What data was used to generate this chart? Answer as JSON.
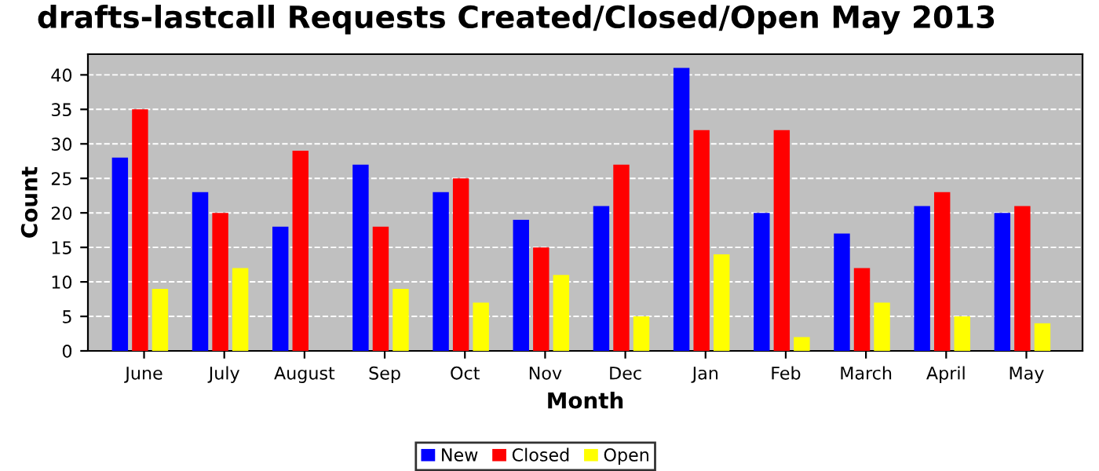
{
  "chart_data": {
    "type": "bar",
    "title": "drafts-lastcall Requests Created/Closed/Open May 2013",
    "xlabel": "Month",
    "ylabel": "Count",
    "categories": [
      "June",
      "July",
      "August",
      "Sep",
      "Oct",
      "Nov",
      "Dec",
      "Jan",
      "Feb",
      "March",
      "April",
      "May"
    ],
    "series": [
      {
        "name": "New",
        "color": "#0000ff",
        "values": [
          28,
          23,
          18,
          27,
          23,
          19,
          21,
          41,
          20,
          17,
          21,
          20
        ]
      },
      {
        "name": "Closed",
        "color": "#ff0000",
        "values": [
          35,
          20,
          29,
          18,
          25,
          15,
          27,
          32,
          32,
          12,
          23,
          21
        ]
      },
      {
        "name": "Open",
        "color": "#ffff00",
        "values": [
          9,
          12,
          0,
          9,
          7,
          11,
          5,
          14,
          2,
          7,
          5,
          4
        ]
      }
    ],
    "ylim": [
      0,
      43
    ],
    "yticks": [
      0,
      5,
      10,
      15,
      20,
      25,
      30,
      35,
      40
    ],
    "grid": "y",
    "legend": "bottom"
  }
}
